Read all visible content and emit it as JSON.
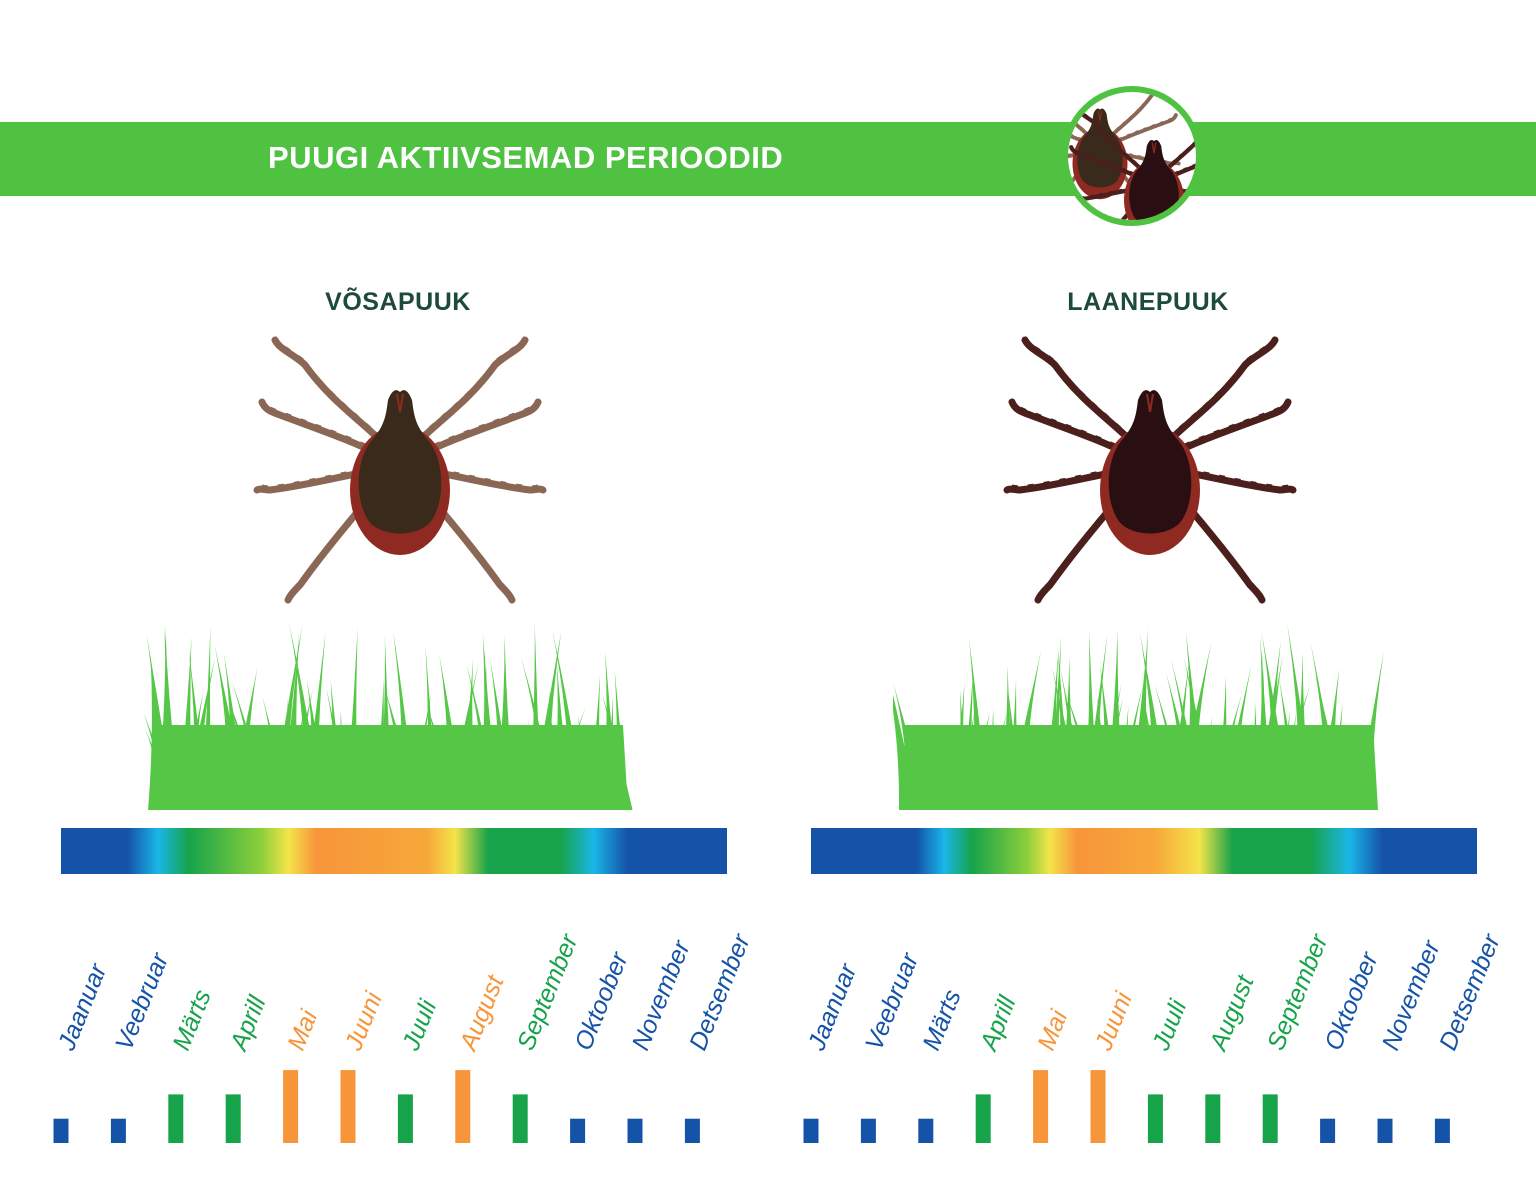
{
  "header": {
    "title": "PUUGI AKTIIVSEMAD PERIOODID",
    "badge_icon": "two-ticks-icon"
  },
  "colors": {
    "banner_green": "#4fc242",
    "low_activity_blue": "#1553a8",
    "medium_activity_green": "#16a34a",
    "high_activity_orange": "#f7953a",
    "grass_green": "#55c646",
    "tick_body_red": "#8f2a22"
  },
  "chart_data": [
    {
      "type": "bar",
      "title": "VÕSAPUUK",
      "categories": [
        "Jaanuar",
        "Veebruar",
        "Märts",
        "Aprill",
        "Mai",
        "Juuni",
        "Juuli",
        "August",
        "September",
        "Oktoober",
        "November",
        "Detsember"
      ],
      "values": [
        1,
        1,
        2,
        2,
        3,
        3,
        2,
        3,
        2,
        1,
        1,
        1
      ],
      "activity_levels": [
        "low",
        "low",
        "medium",
        "medium",
        "high",
        "high",
        "medium",
        "high",
        "medium",
        "low",
        "low",
        "low"
      ],
      "level_colors": {
        "low": "#1553a8",
        "medium": "#16a34a",
        "high": "#f7953a"
      },
      "ylim": [
        0,
        3
      ],
      "gradient_stops": [
        {
          "month": 0.0,
          "color": "#1553a8"
        },
        {
          "month": 1.2,
          "color": "#1553a8"
        },
        {
          "month": 1.75,
          "color": "#1ab6e8"
        },
        {
          "month": 2.3,
          "color": "#16a34a"
        },
        {
          "month": 3.6,
          "color": "#8ccf3a"
        },
        {
          "month": 4.1,
          "color": "#f4e34a"
        },
        {
          "month": 4.6,
          "color": "#f7953a"
        },
        {
          "month": 6.6,
          "color": "#f7a83a"
        },
        {
          "month": 7.1,
          "color": "#f4e34a"
        },
        {
          "month": 7.7,
          "color": "#16a34a"
        },
        {
          "month": 9.0,
          "color": "#16a34a"
        },
        {
          "month": 9.6,
          "color": "#1ab6e8"
        },
        {
          "month": 10.2,
          "color": "#1553a8"
        },
        {
          "month": 12.0,
          "color": "#1553a8"
        }
      ]
    },
    {
      "type": "bar",
      "title": "LAANEPUUK",
      "categories": [
        "Jaanuar",
        "Veebruar",
        "Märts",
        "Aprill",
        "Mai",
        "Juuni",
        "Juuli",
        "August",
        "September",
        "Oktoober",
        "November",
        "Detsember"
      ],
      "values": [
        1,
        1,
        1,
        2,
        3,
        3,
        2,
        2,
        2,
        1,
        1,
        1
      ],
      "activity_levels": [
        "low",
        "low",
        "low",
        "medium",
        "high",
        "high",
        "medium",
        "medium",
        "medium",
        "low",
        "low",
        "low"
      ],
      "level_colors": {
        "low": "#1553a8",
        "medium": "#16a34a",
        "high": "#f7953a"
      },
      "ylim": [
        0,
        3
      ],
      "gradient_stops": [
        {
          "month": 0.0,
          "color": "#1553a8"
        },
        {
          "month": 1.9,
          "color": "#1553a8"
        },
        {
          "month": 2.4,
          "color": "#1ab6e8"
        },
        {
          "month": 2.9,
          "color": "#16a34a"
        },
        {
          "month": 3.9,
          "color": "#8ccf3a"
        },
        {
          "month": 4.3,
          "color": "#f4e34a"
        },
        {
          "month": 4.8,
          "color": "#f7953a"
        },
        {
          "month": 6.2,
          "color": "#f7a83a"
        },
        {
          "month": 7.0,
          "color": "#f4e34a"
        },
        {
          "month": 7.6,
          "color": "#16a34a"
        },
        {
          "month": 9.0,
          "color": "#16a34a"
        },
        {
          "month": 9.7,
          "color": "#1ab6e8"
        },
        {
          "month": 10.3,
          "color": "#1553a8"
        },
        {
          "month": 12.0,
          "color": "#1553a8"
        }
      ]
    }
  ]
}
